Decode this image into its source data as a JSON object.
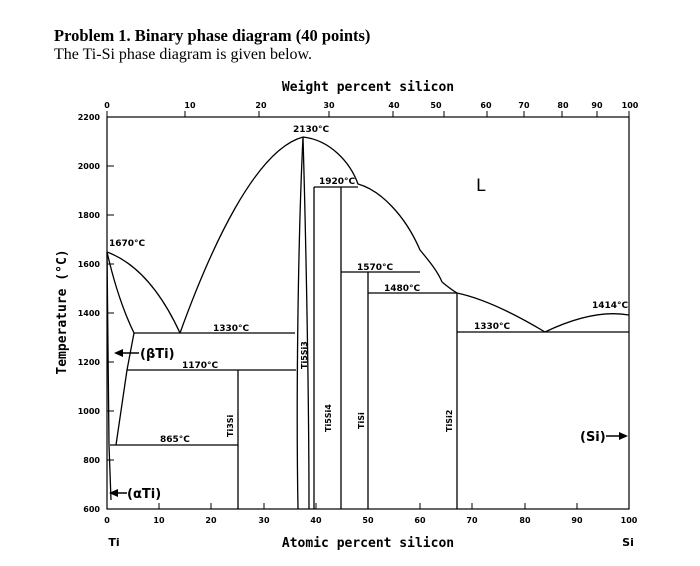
{
  "header": {
    "title": "Problem 1. Binary phase diagram (40 points)",
    "subtitle": "The Ti-Si phase diagram is given below."
  },
  "diagram": {
    "top_axis_title": "Weight percent silicon",
    "bottom_axis_title": "Atomic percent silicon",
    "y_axis_title": "Temperature (°C)",
    "top_ticks": [
      "0",
      "10",
      "20",
      "30",
      "40",
      "50",
      "60",
      "70",
      "80",
      "90",
      "100"
    ],
    "bottom_ticks": [
      "0",
      "10",
      "20",
      "30",
      "40",
      "50",
      "60",
      "70",
      "80",
      "90",
      "100"
    ],
    "y_ticks": [
      "600",
      "800",
      "1000",
      "1200",
      "1400",
      "1600",
      "1800",
      "2000",
      "2200"
    ],
    "left_element": "Ti",
    "right_element": "Si",
    "annotations": {
      "t2130": "2130°C",
      "t1920": "1920°C",
      "t1670": "1670°C",
      "t1570": "1570°C",
      "t1480": "1480°C",
      "t1414": "1414°C",
      "t1330_left": "1330°C",
      "t1330_right": "1330°C",
      "t1170": "1170°C",
      "t865": "865°C"
    },
    "regions": {
      "liquid": "L",
      "beta_ti": "(βTi)",
      "alpha_ti": "(αTi)",
      "si": "(Si)"
    },
    "compounds": {
      "ti3si": "Ti3Si",
      "ti5si3": "Ti5Si3",
      "ti5si4": "Ti5Si4",
      "tisi": "TiSi",
      "tisi2": "TiSi2"
    }
  }
}
